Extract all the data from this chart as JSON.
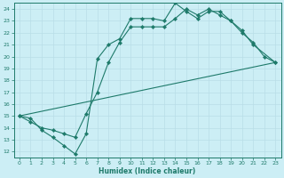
{
  "xlabel": "Humidex (Indice chaleur)",
  "bg_color": "#cceef5",
  "grid_color": "#b8dde8",
  "line_color": "#1e7a6a",
  "xlim": [
    -0.5,
    23.5
  ],
  "ylim": [
    11.5,
    24.5
  ],
  "xticks": [
    0,
    1,
    2,
    3,
    4,
    5,
    6,
    7,
    8,
    9,
    10,
    11,
    12,
    13,
    14,
    15,
    16,
    17,
    18,
    19,
    20,
    21,
    22,
    23
  ],
  "yticks": [
    12,
    13,
    14,
    15,
    16,
    17,
    18,
    19,
    20,
    21,
    22,
    23,
    24
  ],
  "line1_x": [
    0,
    1,
    2,
    3,
    4,
    5,
    6,
    7,
    8,
    9,
    10,
    11,
    12,
    13,
    14,
    15,
    16,
    17,
    18,
    19,
    20,
    21,
    22,
    23
  ],
  "line1_y": [
    15.0,
    14.8,
    13.8,
    13.2,
    12.5,
    11.8,
    13.5,
    19.8,
    21.0,
    21.5,
    23.2,
    23.2,
    23.2,
    23.0,
    24.5,
    23.8,
    23.2,
    23.8,
    23.8,
    23.0,
    22.0,
    21.2,
    20.0,
    19.5
  ],
  "line2_x": [
    0,
    1,
    2,
    3,
    4,
    5,
    6,
    7,
    8,
    9,
    10,
    11,
    12,
    13,
    14,
    15,
    16,
    17,
    18,
    19,
    20,
    21,
    23
  ],
  "line2_y": [
    15.0,
    14.5,
    14.0,
    13.8,
    13.5,
    13.2,
    15.2,
    17.0,
    19.5,
    21.2,
    22.5,
    22.5,
    22.5,
    22.5,
    23.2,
    24.0,
    23.5,
    24.0,
    23.5,
    23.0,
    22.2,
    21.0,
    19.5
  ],
  "line3_x": [
    0,
    23
  ],
  "line3_y": [
    15.0,
    19.5
  ]
}
